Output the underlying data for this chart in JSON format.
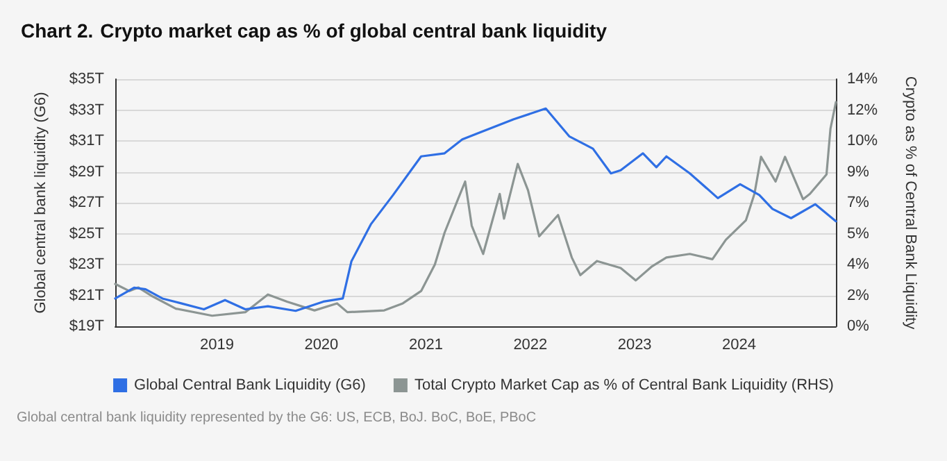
{
  "chart_data": {
    "type": "line",
    "title": "Chart 2. Crypto market cap as % of global central bank liquidity",
    "ylabel": "Global central bank liquidity (G6)",
    "y2label": "Crypto as % of Central Bank Liquidity",
    "annotations": [
      "Global central bank liquidity represented by the G6: US, ECB, BoJ. BoC, BoE, PBoC"
    ],
    "xlim": [
      "2018-01-10",
      "2024-12-05"
    ],
    "xticks": [
      {
        "value": "2019-01-01",
        "label": "2019"
      },
      {
        "value": "2020-01-01",
        "label": "2020"
      },
      {
        "value": "2021-01-01",
        "label": "2021"
      },
      {
        "value": "2022-01-01",
        "label": "2022"
      },
      {
        "value": "2023-01-01",
        "label": "2023"
      },
      {
        "value": "2024-01-01",
        "label": "2024"
      }
    ],
    "ylim": [
      19,
      35
    ],
    "yticks": [
      {
        "value": 19,
        "label": "$19T"
      },
      {
        "value": 21,
        "label": "$21T"
      },
      {
        "value": 23,
        "label": "$23T"
      },
      {
        "value": 25,
        "label": "$25T"
      },
      {
        "value": 27,
        "label": "$27T"
      },
      {
        "value": 29,
        "label": "$29T"
      },
      {
        "value": 31,
        "label": "$31T"
      },
      {
        "value": 33,
        "label": "$33T"
      },
      {
        "value": 35,
        "label": "$35T"
      }
    ],
    "y2lim": [
      0,
      14
    ],
    "y2ticks": [
      {
        "value": 0,
        "label": "0%"
      },
      {
        "value": 1.75,
        "label": "2%"
      },
      {
        "value": 3.5,
        "label": "4%"
      },
      {
        "value": 5.25,
        "label": "5%"
      },
      {
        "value": 7,
        "label": "7%"
      },
      {
        "value": 8.75,
        "label": "9%"
      },
      {
        "value": 10.5,
        "label": "10%"
      },
      {
        "value": 12.25,
        "label": "12%"
      },
      {
        "value": 14,
        "label": "14%"
      }
    ],
    "grid": "y",
    "legend": "bottom",
    "marker": "none",
    "line_style": "solid",
    "series": [
      {
        "name": "Global Central Bank Liquidity (G6)",
        "color": "#2f6fe4",
        "x": [
          "2018-01-10",
          "2018-03-17",
          "2018-04-26",
          "2018-06-24",
          "2018-08-26",
          "2018-11-16",
          "2019-01-29",
          "2019-04-10",
          "2019-06-28",
          "2019-10-03",
          "2020-01-08",
          "2020-03-16",
          "2020-04-15",
          "2020-06-22",
          "2020-09-08",
          "2020-12-15",
          "2021-03-07",
          "2021-05-08",
          "2021-07-15",
          "2021-11-04",
          "2022-02-24",
          "2022-05-17",
          "2022-08-08",
          "2022-10-10",
          "2022-11-13",
          "2023-01-30",
          "2023-03-18",
          "2023-04-22",
          "2023-07-13",
          "2023-10-19",
          "2024-01-05",
          "2024-03-12",
          "2024-04-27",
          "2024-07-01",
          "2024-09-24",
          "2024-12-05"
        ],
        "values": [
          20.8,
          21.5,
          21.4,
          20.8,
          20.5,
          20.1,
          20.7,
          20.1,
          20.3,
          20.0,
          20.6,
          20.8,
          23.2,
          25.6,
          27.5,
          30.0,
          30.2,
          31.1,
          31.6,
          32.4,
          33.1,
          31.3,
          30.5,
          28.9,
          29.1,
          30.2,
          29.3,
          30.0,
          28.9,
          27.3,
          28.2,
          27.5,
          26.6,
          26.0,
          26.9,
          25.8
        ]
      },
      {
        "name": "Total Crypto Market Cap as % of Central Bank Liquidity (RHS)",
        "color": "#8c9593",
        "axis": "y2",
        "x": [
          "2018-01-10",
          "2018-02-28",
          "2018-04-01",
          "2018-05-20",
          "2018-08-10",
          "2018-12-15",
          "2019-04-10",
          "2019-06-28",
          "2019-09-03",
          "2019-12-08",
          "2020-02-25",
          "2020-04-01",
          "2020-08-08",
          "2020-10-12",
          "2020-12-15",
          "2021-02-01",
          "2021-03-07",
          "2021-04-23",
          "2021-05-18",
          "2021-06-10",
          "2021-07-20",
          "2021-09-16",
          "2021-10-01",
          "2021-11-18",
          "2021-12-24",
          "2022-02-01",
          "2022-04-08",
          "2022-05-26",
          "2022-06-25",
          "2022-08-22",
          "2022-11-13",
          "2023-01-05",
          "2023-03-03",
          "2023-04-22",
          "2023-07-13",
          "2023-09-30",
          "2023-11-16",
          "2024-01-25",
          "2024-02-24",
          "2024-03-18",
          "2024-05-08",
          "2024-06-10",
          "2024-08-12",
          "2024-09-05",
          "2024-11-02",
          "2024-11-16",
          "2024-12-05"
        ],
        "values": [
          2.4,
          2.0,
          2.2,
          1.7,
          1.0,
          0.6,
          0.8,
          1.8,
          1.4,
          0.9,
          1.3,
          0.8,
          0.9,
          1.3,
          2.0,
          3.5,
          5.3,
          7.2,
          8.2,
          5.7,
          4.1,
          7.5,
          6.1,
          9.2,
          7.7,
          5.1,
          6.3,
          3.9,
          2.9,
          3.7,
          3.3,
          2.6,
          3.4,
          3.9,
          4.1,
          3.8,
          4.9,
          6.0,
          7.5,
          9.6,
          8.2,
          9.6,
          7.2,
          7.5,
          8.6,
          11.2,
          12.7
        ]
      }
    ]
  }
}
